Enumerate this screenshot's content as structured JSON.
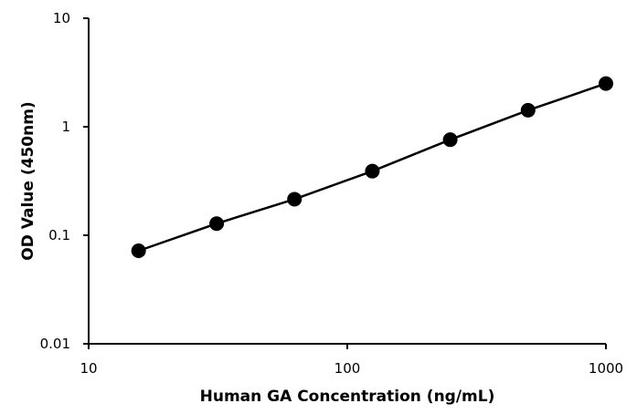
{
  "chart_data": {
    "type": "scatter",
    "title": "",
    "xlabel": "Human GA Concentration (ng/mL)",
    "ylabel": "OD Value (450nm)",
    "x_scale": "log",
    "y_scale": "log",
    "xlim": [
      10,
      1000
    ],
    "ylim": [
      0.01,
      10
    ],
    "x_ticks": [
      {
        "value": 10,
        "label": "10"
      },
      {
        "value": 100,
        "label": "100"
      },
      {
        "value": 1000,
        "label": "1000"
      }
    ],
    "y_ticks": [
      {
        "value": 0.01,
        "label": "0.01"
      },
      {
        "value": 0.1,
        "label": "0.1"
      },
      {
        "value": 1,
        "label": "1"
      },
      {
        "value": 10,
        "label": "10"
      }
    ],
    "grid": false,
    "legend": "none",
    "series": [
      {
        "name": "",
        "color": "#000000",
        "x": [
          15.6,
          31.25,
          62.5,
          125,
          250,
          500,
          1000
        ],
        "y": [
          0.072,
          0.128,
          0.215,
          0.39,
          0.76,
          1.42,
          2.5
        ]
      }
    ]
  }
}
